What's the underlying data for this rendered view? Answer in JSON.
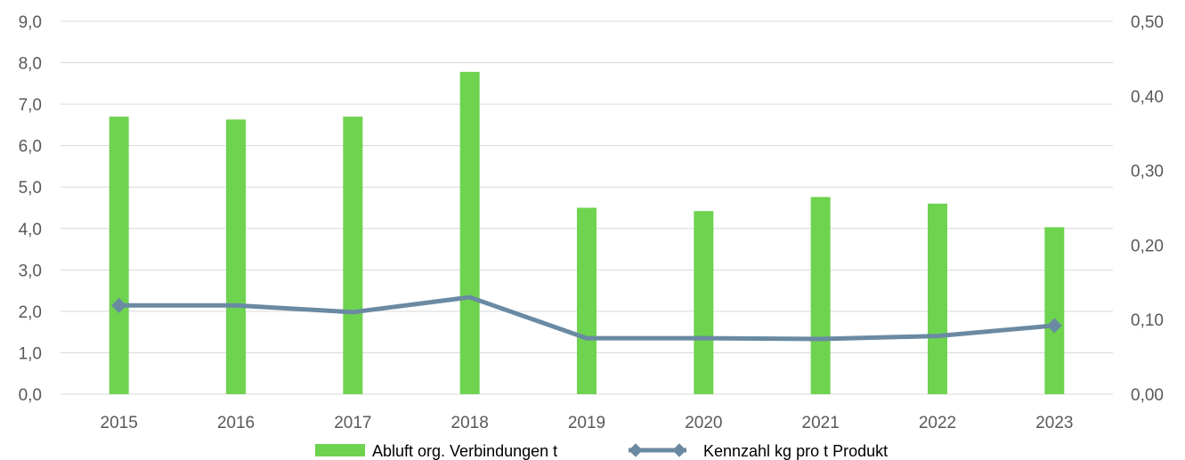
{
  "chart_data": {
    "type": "bar",
    "categories": [
      "2015",
      "2016",
      "2017",
      "2018",
      "2019",
      "2020",
      "2021",
      "2022",
      "2023"
    ],
    "series": [
      {
        "name": "Abluft org. Verbindungen t",
        "type": "bar",
        "axis": "left",
        "values": [
          6.7,
          6.63,
          6.7,
          7.78,
          4.5,
          4.42,
          4.76,
          4.6,
          4.03
        ]
      },
      {
        "name": "Kennzahl kg pro t Produkt",
        "type": "line",
        "axis": "right",
        "values": [
          0.119,
          0.119,
          0.11,
          0.13,
          0.075,
          0.075,
          0.074,
          0.078,
          0.092
        ]
      }
    ],
    "ylim_left": [
      0,
      9
    ],
    "ylim_right": [
      0,
      0.5
    ],
    "yticks_left": [
      "0,0",
      "1,0",
      "2,0",
      "3,0",
      "4,0",
      "5,0",
      "6,0",
      "7,0",
      "8,0",
      "9,0"
    ],
    "yticks_right": [
      "0,00",
      "0,10",
      "0,20",
      "0,30",
      "0,40",
      "0,50"
    ],
    "title": "",
    "xlabel": "",
    "ylabel": "",
    "grid": true,
    "legend_position": "bottom",
    "colors": {
      "bar": "#6ed34f",
      "line": "#6a8aa3",
      "grid": "#d9d9d9",
      "tick": "#595959"
    }
  }
}
